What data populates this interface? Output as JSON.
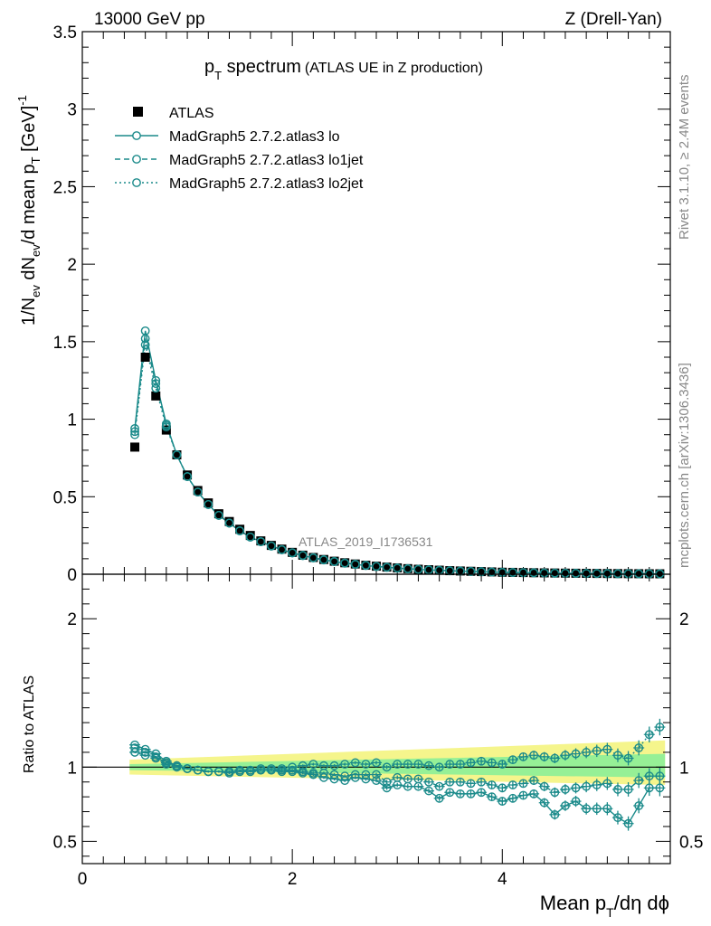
{
  "header": {
    "left": "13000 GeV pp",
    "right": "Z (Drell-Yan)"
  },
  "side_labels": {
    "rivet": "Rivet 3.1.10, ≥ 2.4M events",
    "mcplots": "mcplots.cern.ch [arXiv:1306.3436]"
  },
  "colors": {
    "mc": "#1a8a8a",
    "data": "#000000",
    "band_yellow": "#f5f58c",
    "band_green": "#96f096"
  },
  "chart_data": [
    {
      "type": "scatter",
      "title_main": "p",
      "title_sub": "T",
      "title_rest": " spectrum",
      "title_note": "(ATLAS UE in Z production)",
      "watermark": "ATLAS_2019_I1736531",
      "ylabel": "1/N_ev dN_ev/d mean p_T [GeV]^-1",
      "ylim": [
        0,
        3.5
      ],
      "yticks": [
        "0",
        "0.5",
        "1",
        "1.5",
        "2",
        "2.5",
        "3",
        "3.5"
      ],
      "legend_position": "top-left",
      "x": [
        0.5,
        0.6,
        0.7,
        0.8,
        0.9,
        1.0,
        1.1,
        1.2,
        1.3,
        1.4,
        1.5,
        1.6,
        1.7,
        1.8,
        1.9,
        2.0,
        2.1,
        2.2,
        2.3,
        2.4,
        2.5,
        2.6,
        2.7,
        2.8,
        2.9,
        3.0,
        3.1,
        3.2,
        3.3,
        3.4,
        3.5,
        3.6,
        3.7,
        3.8,
        3.9,
        4.0,
        4.1,
        4.2,
        4.3,
        4.4,
        4.5,
        4.6,
        4.7,
        4.8,
        4.9,
        5.0,
        5.1,
        5.2,
        5.3,
        5.4,
        5.5
      ],
      "series": [
        {
          "name": "ATLAS",
          "marker": "square",
          "values": [
            0.82,
            1.4,
            1.15,
            0.93,
            0.77,
            0.64,
            0.54,
            0.46,
            0.39,
            0.34,
            0.29,
            0.25,
            0.215,
            0.186,
            0.162,
            0.141,
            0.123,
            0.108,
            0.095,
            0.084,
            0.074,
            0.066,
            0.058,
            0.052,
            0.046,
            0.041,
            0.036,
            0.032,
            0.029,
            0.026,
            0.023,
            0.021,
            0.019,
            0.017,
            0.015,
            0.013,
            0.012,
            0.011,
            0.0098,
            0.0088,
            0.0079,
            0.0071,
            0.0064,
            0.0058,
            0.0052,
            0.0047,
            0.0042,
            0.0038,
            0.0034,
            0.0031,
            0.0028
          ]
        },
        {
          "name": "MadGraph5 2.7.2.atlas3 lo",
          "line": "solid",
          "values": [
            0.94,
            1.57,
            1.25,
            0.97,
            0.77,
            0.63,
            0.53,
            0.45,
            0.38,
            0.33,
            0.28,
            0.24,
            0.21,
            0.182,
            0.158,
            0.137,
            0.12,
            0.105,
            0.092,
            0.081,
            0.071,
            0.063,
            0.056,
            0.05,
            0.044,
            0.039,
            0.035,
            0.031,
            0.028,
            0.025,
            0.022,
            0.02,
            0.018,
            0.016,
            0.014,
            0.012,
            0.011,
            0.01,
            0.009,
            0.008,
            0.007,
            0.0064,
            0.0058,
            0.0052,
            0.0047,
            0.0042,
            0.0038,
            0.0034,
            0.003,
            0.0027,
            0.0024
          ]
        },
        {
          "name": "MadGraph5 2.7.2.atlas3 lo1jet",
          "line": "dashed",
          "values": [
            0.92,
            1.52,
            1.23,
            0.96,
            0.77,
            0.63,
            0.53,
            0.45,
            0.38,
            0.33,
            0.28,
            0.24,
            0.21,
            0.182,
            0.158,
            0.138,
            0.121,
            0.106,
            0.093,
            0.082,
            0.072,
            0.064,
            0.057,
            0.05,
            0.045,
            0.04,
            0.035,
            0.031,
            0.028,
            0.025,
            0.022,
            0.02,
            0.018,
            0.016,
            0.014,
            0.012,
            0.011,
            0.01,
            0.009,
            0.008,
            0.007,
            0.0064,
            0.0058,
            0.0052,
            0.0047,
            0.0042,
            0.0038,
            0.0034,
            0.003,
            0.0027,
            0.0024
          ]
        },
        {
          "name": "MadGraph5 2.7.2.atlas3 lo2jet",
          "line": "dotted",
          "values": [
            0.9,
            1.48,
            1.2,
            0.95,
            0.77,
            0.63,
            0.53,
            0.45,
            0.38,
            0.33,
            0.28,
            0.24,
            0.21,
            0.183,
            0.159,
            0.139,
            0.122,
            0.107,
            0.094,
            0.083,
            0.073,
            0.065,
            0.058,
            0.051,
            0.046,
            0.041,
            0.036,
            0.032,
            0.029,
            0.026,
            0.023,
            0.021,
            0.019,
            0.017,
            0.015,
            0.013,
            0.012,
            0.011,
            0.0098,
            0.0088,
            0.0079,
            0.0071,
            0.0064,
            0.0058,
            0.0052,
            0.0047,
            0.0042,
            0.0038,
            0.0034,
            0.0031,
            0.0028
          ]
        }
      ]
    },
    {
      "type": "scatter",
      "ylabel": "Ratio to ATLAS",
      "ylim": [
        0.35,
        2.3
      ],
      "yticks": [
        "0.5",
        "1",
        "2"
      ],
      "xlabel_main": "Mean p",
      "xlabel_sub": "T",
      "xlabel_rest": "/dη dϕ",
      "xlim": [
        0,
        5.6
      ],
      "xticks": [
        "0",
        "2",
        "4"
      ],
      "band_x": [
        0.45,
        5.55
      ],
      "band_yellow_up": [
        1.05,
        1.18
      ],
      "band_yellow_down": [
        0.95,
        0.88
      ],
      "band_green_up": [
        1.02,
        1.09
      ],
      "band_green_down": [
        0.98,
        0.93
      ],
      "series": [
        {
          "name": "MadGraph5 2.7.2.atlas3 lo",
          "line": "solid",
          "values": [
            1.15,
            1.12,
            1.09,
            1.04,
            1.01,
            0.99,
            0.98,
            0.97,
            0.97,
            0.96,
            0.97,
            0.97,
            0.98,
            0.98,
            0.97,
            0.97,
            0.96,
            0.95,
            0.93,
            0.92,
            0.91,
            0.93,
            0.92,
            0.91,
            0.86,
            0.88,
            0.87,
            0.87,
            0.84,
            0.79,
            0.83,
            0.82,
            0.82,
            0.83,
            0.8,
            0.77,
            0.79,
            0.81,
            0.82,
            0.76,
            0.68,
            0.74,
            0.77,
            0.72,
            0.72,
            0.72,
            0.66,
            0.62,
            0.74,
            0.86,
            0.86
          ]
        },
        {
          "name": "MadGraph5 2.7.2.atlas3 lo1jet",
          "line": "dashed",
          "values": [
            1.13,
            1.1,
            1.07,
            1.03,
            1.01,
            0.99,
            0.98,
            0.97,
            0.97,
            0.97,
            0.97,
            0.97,
            0.98,
            0.98,
            0.98,
            0.98,
            0.97,
            0.96,
            0.96,
            0.95,
            0.94,
            0.95,
            0.95,
            0.95,
            0.9,
            0.93,
            0.92,
            0.92,
            0.9,
            0.87,
            0.9,
            0.9,
            0.89,
            0.9,
            0.88,
            0.86,
            0.88,
            0.89,
            0.91,
            0.87,
            0.83,
            0.85,
            0.86,
            0.87,
            0.88,
            0.89,
            0.85,
            0.85,
            0.91,
            0.94,
            0.94
          ]
        },
        {
          "name": "MadGraph5 2.7.2.atlas3 lo2jet",
          "line": "dotted",
          "values": [
            1.1,
            1.08,
            1.06,
            1.02,
            1.0,
            0.99,
            0.98,
            0.97,
            0.97,
            0.97,
            0.98,
            0.98,
            0.99,
            0.99,
            0.99,
            1.0,
            1.01,
            1.02,
            1.01,
            1.01,
            1.02,
            1.03,
            1.02,
            1.03,
            1.0,
            1.02,
            1.02,
            1.02,
            1.01,
            1.0,
            1.02,
            1.02,
            1.03,
            1.04,
            1.03,
            1.02,
            1.05,
            1.07,
            1.08,
            1.07,
            1.06,
            1.08,
            1.09,
            1.1,
            1.11,
            1.12,
            1.08,
            1.06,
            1.13,
            1.22,
            1.27
          ]
        }
      ]
    }
  ]
}
